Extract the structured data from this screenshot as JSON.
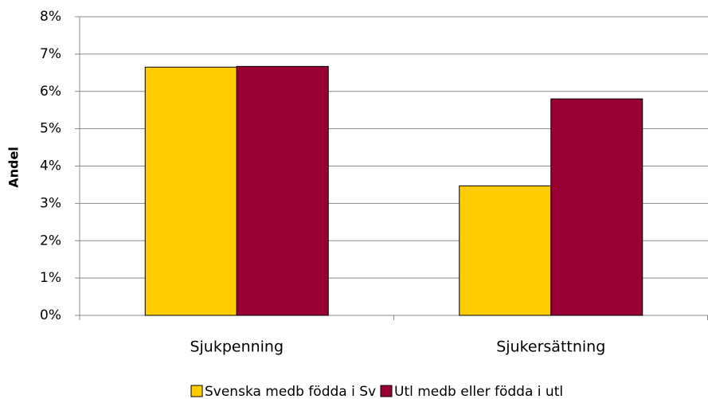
{
  "chart_data": {
    "type": "bar",
    "y_label": "Andel",
    "categories": [
      "Sjukpenning",
      "Sjukersättning"
    ],
    "series": [
      {
        "name": "Svenska medb födda i Sv",
        "color": "#ffcc00",
        "values": [
          6.65,
          3.47
        ]
      },
      {
        "name": "Utl medb eller födda i utl",
        "color": "#990033",
        "values": [
          6.67,
          5.8
        ]
      }
    ],
    "ylim": [
      0,
      8
    ],
    "yticks": [
      {
        "value": 0,
        "label": "0%"
      },
      {
        "value": 1,
        "label": "1%"
      },
      {
        "value": 2,
        "label": "2%"
      },
      {
        "value": 3,
        "label": "3%"
      },
      {
        "value": 4,
        "label": "4%"
      },
      {
        "value": 5,
        "label": "5%"
      },
      {
        "value": 6,
        "label": "6%"
      },
      {
        "value": 7,
        "label": "7%"
      },
      {
        "value": 8,
        "label": "8%"
      }
    ],
    "grid": true,
    "legend": "bottom"
  }
}
